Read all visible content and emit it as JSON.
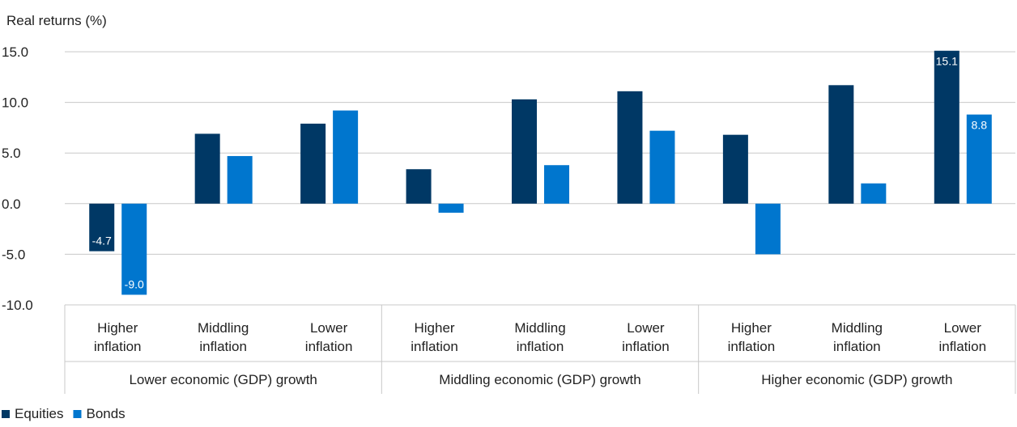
{
  "chart_data": {
    "type": "bar",
    "ylabel": "Real returns (%)",
    "ylim": [
      -10,
      15
    ],
    "yticks": [
      15,
      10,
      5,
      0,
      -5,
      -10
    ],
    "ytick_labels": [
      "15.0",
      "10.0",
      "5.0",
      "0.0",
      "-5.0",
      "-10.0"
    ],
    "grid": true,
    "legend_position": "bottom-left",
    "groups": [
      {
        "label": "Lower economic (GDP) growth",
        "categories": [
          [
            "Higher",
            "inflation"
          ],
          [
            "Middling",
            "inflation"
          ],
          [
            "Lower",
            "inflation"
          ]
        ]
      },
      {
        "label": "Middling economic (GDP) growth",
        "categories": [
          [
            "Higher",
            "inflation"
          ],
          [
            "Middling",
            "inflation"
          ],
          [
            "Lower",
            "inflation"
          ]
        ]
      },
      {
        "label": "Higher economic (GDP) growth",
        "categories": [
          [
            "Higher",
            "inflation"
          ],
          [
            "Middling",
            "inflation"
          ],
          [
            "Lower",
            "inflation"
          ]
        ]
      }
    ],
    "series": [
      {
        "name": "Equities",
        "color": "#003865",
        "values": [
          -4.7,
          6.9,
          7.9,
          3.4,
          10.3,
          11.1,
          6.8,
          11.7,
          15.1
        ],
        "data_labels": [
          "-4.7",
          "",
          "",
          "",
          "",
          "",
          "",
          "",
          "15.1"
        ]
      },
      {
        "name": "Bonds",
        "color": "#0076CE",
        "values": [
          -9.0,
          4.7,
          9.2,
          -0.9,
          3.8,
          7.2,
          -5.0,
          2.0,
          8.8
        ],
        "data_labels": [
          "-9.0",
          "",
          "",
          "",
          "",
          "",
          "",
          "",
          "8.8"
        ]
      }
    ]
  }
}
